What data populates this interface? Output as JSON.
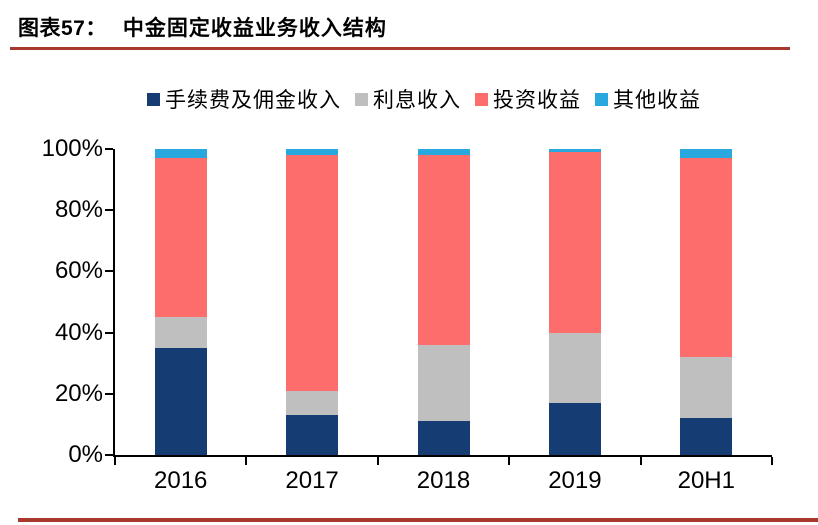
{
  "header": {
    "figure_label": "图表57：",
    "title": "中金固定收益业务收入结构"
  },
  "colors": {
    "rule": "#A8382C",
    "axis": "#000000",
    "background": "#ffffff"
  },
  "chart_data": {
    "type": "bar",
    "stacked": true,
    "units": "percent",
    "title": "中金固定收益业务收入结构",
    "xlabel": "",
    "ylabel": "",
    "ylim": [
      0,
      100
    ],
    "y_ticks": [
      "0%",
      "20%",
      "40%",
      "60%",
      "80%",
      "100%"
    ],
    "grid": false,
    "legend_position": "top",
    "categories": [
      "2016",
      "2017",
      "2018",
      "2019",
      "20H1"
    ],
    "series": [
      {
        "name": "手续费及佣金收入",
        "color": "#153D73",
        "values": [
          35,
          13,
          11,
          17,
          12
        ]
      },
      {
        "name": "利息收入",
        "color": "#BFBFBF",
        "values": [
          10,
          8,
          25,
          23,
          20
        ]
      },
      {
        "name": "投资收益",
        "color": "#FC6D6B",
        "values": [
          52,
          77,
          62,
          59,
          65
        ]
      },
      {
        "name": "其他收益",
        "color": "#29A8E0",
        "values": [
          3,
          2,
          2,
          1,
          3
        ]
      }
    ]
  }
}
